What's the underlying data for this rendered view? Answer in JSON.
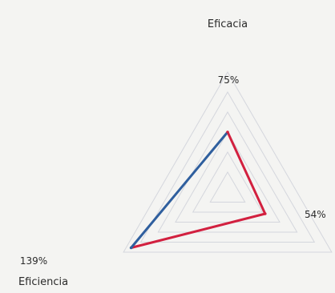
{
  "chart_data": {
    "type": "radar",
    "axes": [
      "Eficacia",
      "",
      "Eficiencia"
    ],
    "values": [
      75,
      54,
      139
    ],
    "data_labels": [
      "75%",
      "54%",
      "139%"
    ],
    "rings": 6,
    "ring_color": "#c9ccd6",
    "colors": {
      "series_primary": "#d2203f",
      "series_secondary": "#2f5f9e"
    }
  }
}
